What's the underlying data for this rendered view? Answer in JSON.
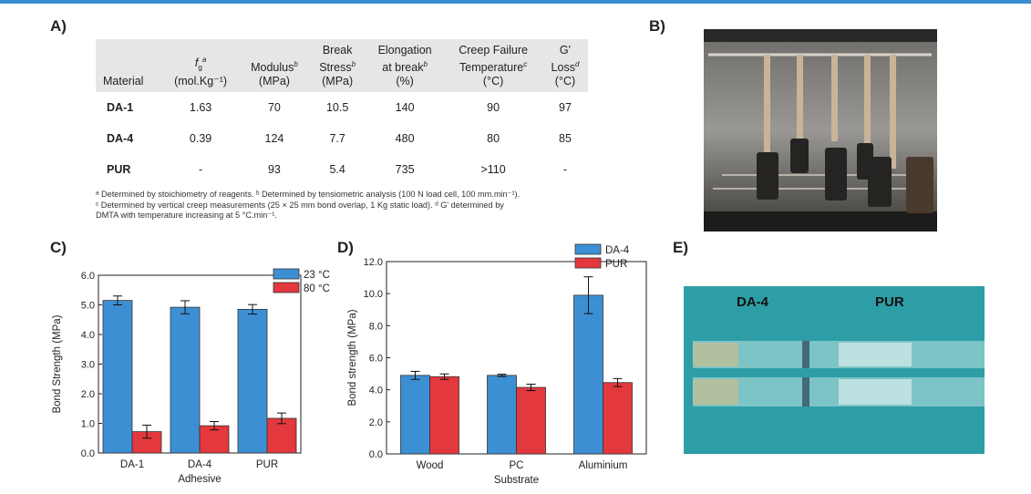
{
  "panels": {
    "a": "A)",
    "b": "B)",
    "c": "C)",
    "d": "D)",
    "e": "E)"
  },
  "table": {
    "headers": [
      {
        "lines": [
          "",
          "",
          "Material"
        ]
      },
      {
        "lines": [
          "",
          "f",
          "(mol.Kg⁻¹)"
        ],
        "sub": "g",
        "sup": "a"
      },
      {
        "lines": [
          "",
          "Modulus",
          "(MPa)"
        ],
        "sup": "b"
      },
      {
        "lines": [
          "Break",
          "Stress",
          "(MPa)"
        ],
        "sup": "b"
      },
      {
        "lines": [
          "Elongation",
          "at break",
          "(%)"
        ],
        "sup": "b"
      },
      {
        "lines": [
          "Creep Failure",
          "Temperature",
          "(°C)"
        ],
        "sup": "c"
      },
      {
        "lines": [
          "G'",
          "Loss",
          "(°C)"
        ],
        "sup": "d"
      }
    ],
    "rows": [
      [
        "DA-1",
        "1.63",
        "70",
        "10.5",
        "140",
        "90",
        "97"
      ],
      [
        "DA-4",
        "0.39",
        "124",
        "7.7",
        "480",
        "80",
        "85"
      ],
      [
        "PUR",
        "-",
        "93",
        "5.4",
        "735",
        ">110",
        "-"
      ]
    ]
  },
  "footnotes": {
    "line1": "ᵃ Determined by stoichiometry of reagents. ᵇ Determined by tensiometric analysis (100 N load cell, 100 mm.min⁻¹).",
    "line2": "ᶜ Determined by vertical creep measurements (25 × 25 mm bond overlap, 1 Kg static load). ᵈ G' determined by",
    "line3": "DMTA with temperature increasing at 5 °C.min⁻¹."
  },
  "photo_e_labels": {
    "left": "DA-4",
    "right": "PUR"
  },
  "chart_data": [
    {
      "type": "bar",
      "panel": "C",
      "categories": [
        "DA-1",
        "DA-4",
        "PUR"
      ],
      "series": [
        {
          "name": "23 °C",
          "values": [
            5.15,
            4.92,
            4.85
          ],
          "errors": [
            0.15,
            0.22,
            0.16
          ],
          "color": "#3d8fd4"
        },
        {
          "name": "80 °C",
          "values": [
            0.72,
            0.92,
            1.17
          ],
          "errors": [
            0.22,
            0.14,
            0.18
          ],
          "color": "#e3383d"
        }
      ],
      "xlabel": "Adhesive",
      "ylabel": "Bond Strength (MPa)",
      "ylim": [
        0,
        6
      ],
      "yticks": [
        "0.0",
        "1.0",
        "2.0",
        "3.0",
        "4.0",
        "5.0",
        "6.0"
      ],
      "legend": "top-right"
    },
    {
      "type": "bar",
      "panel": "D",
      "categories": [
        "Wood",
        "PC",
        "Aluminium"
      ],
      "series": [
        {
          "name": "DA-4",
          "values": [
            4.9,
            4.9,
            9.9
          ],
          "errors": [
            0.25,
            0.07,
            1.15
          ],
          "color": "#3d8fd4"
        },
        {
          "name": "PUR",
          "values": [
            4.82,
            4.15,
            4.45
          ],
          "errors": [
            0.17,
            0.2,
            0.25
          ],
          "color": "#e3383d"
        }
      ],
      "xlabel": "Substrate",
      "ylabel": "Bond strength (MPa)",
      "ylim": [
        0,
        12
      ],
      "yticks": [
        "0.0",
        "2.0",
        "4.0",
        "6.0",
        "8.0",
        "10.0",
        "12.0"
      ],
      "legend": "top-right"
    }
  ]
}
